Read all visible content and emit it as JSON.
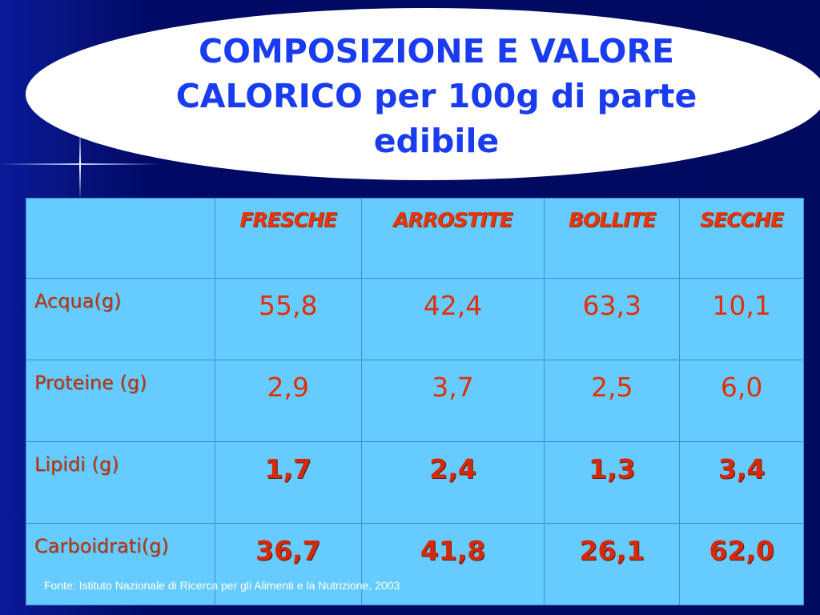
{
  "header": {
    "title_lines": [
      "COMPOSIZIONE E VALORE",
      "CALORICO per 100g di parte",
      "edibile"
    ]
  },
  "table": {
    "columns": [
      "FRESCHE",
      "ARROSTITE",
      "BOLLITE",
      "SECCHE"
    ],
    "rows": [
      {
        "label": "Acqua(g)",
        "values": [
          "55,8",
          "42,4",
          "63,3",
          "10,1"
        ],
        "bold": false
      },
      {
        "label": "Proteine (g)",
        "values": [
          "2,9",
          "3,7",
          "2,5",
          "6,0"
        ],
        "bold": false
      },
      {
        "label": "Lipidi (g)",
        "values": [
          "1,7",
          "2,4",
          "1,3",
          "3,4"
        ],
        "bold": true
      },
      {
        "label": "Carboidrati(g)",
        "values": [
          "36,7",
          "41,8",
          "26,1",
          "62,0"
        ],
        "bold": true
      }
    ]
  },
  "footer": {
    "source": "Fonte: Istituto Nazionale di Ricerca per gli Alimenti e la Nutrizione, 2003"
  }
}
